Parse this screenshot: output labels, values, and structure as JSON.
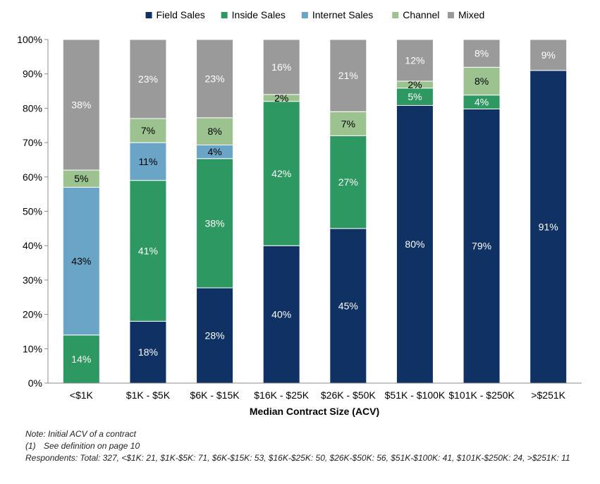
{
  "chart_data": {
    "type": "bar",
    "stacked": true,
    "xlabel": "Median Contract Size (ACV)",
    "ylabel": "",
    "ylim": [
      0,
      100
    ],
    "yticks": [
      "0%",
      "10%",
      "20%",
      "30%",
      "40%",
      "50%",
      "60%",
      "70%",
      "80%",
      "90%",
      "100%"
    ],
    "legend_position": "top",
    "categories": [
      "<$1K",
      "$1K - $5K",
      "$6K - $15K",
      "$16K - $25K",
      "$26K - $50K",
      "$51K - $100K",
      "$101K - $250K",
      ">$251K"
    ],
    "series": [
      {
        "name": "Field Sales",
        "color": "#0f3163",
        "values": [
          0,
          18,
          28,
          40,
          45,
          80,
          79,
          91
        ],
        "labels": [
          "",
          "18%",
          "28%",
          "40%",
          "45%",
          "80%",
          "79%",
          "91%"
        ],
        "label_color": "#ffffff"
      },
      {
        "name": "Inside Sales",
        "color": "#2e9862",
        "values": [
          14,
          41,
          38,
          42,
          27,
          5,
          4,
          0
        ],
        "labels": [
          "14%",
          "41%",
          "38%",
          "42%",
          "27%",
          "5%",
          "4%",
          ""
        ],
        "label_color": "#ffffff"
      },
      {
        "name": "Internet Sales",
        "color": "#6aa5c7",
        "values": [
          43,
          11,
          4,
          0,
          0,
          0,
          0,
          0
        ],
        "labels": [
          "43%",
          "11%",
          "4%",
          "",
          "",
          "",
          "",
          ""
        ],
        "label_color": "#000000"
      },
      {
        "name": "Channel",
        "color": "#9cc28f",
        "values": [
          5,
          7,
          8,
          2,
          7,
          2,
          8,
          0
        ],
        "labels": [
          "5%",
          "7%",
          "8%",
          "2%",
          "7%",
          "2%",
          "8%",
          ""
        ],
        "label_color": "#000000"
      },
      {
        "name": "Mixed",
        "color": "#9a9a9a",
        "values": [
          38,
          23,
          23,
          16,
          21,
          12,
          8,
          9
        ],
        "labels": [
          "38%",
          "23%",
          "23%",
          "16%",
          "21%",
          "12%",
          "8%",
          "9%"
        ],
        "label_color": "#ffffff"
      }
    ]
  },
  "notes": {
    "line1": "Note: Initial ACV of a contract",
    "line2_num": "(1)",
    "line2_text": "See definition on page 10",
    "line3": "Respondents: Total: 327, <$1K: 21, $1K-$5K: 71, $6K-$15K: 53, $16K-$25K: 50, $26K-$50K: 56, $51K-$100K: 41, $101K-$250K: 24, >$251K: 11"
  }
}
